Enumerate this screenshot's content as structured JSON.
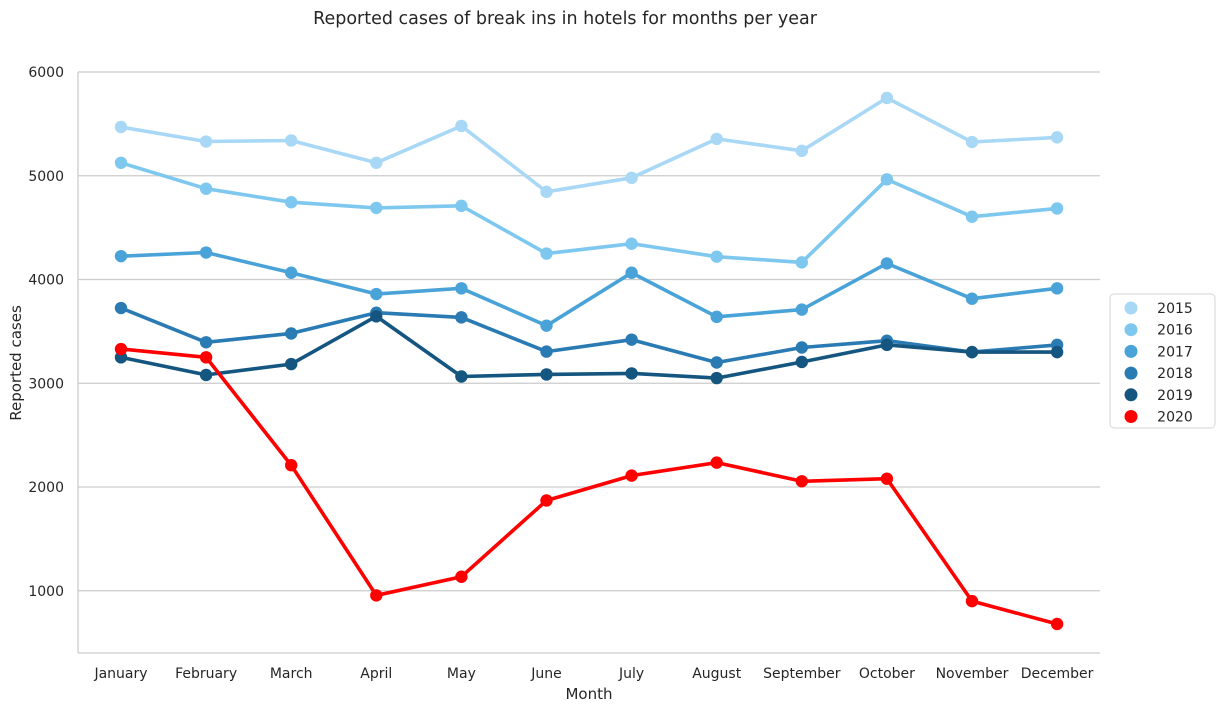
{
  "chart_data": {
    "type": "line",
    "title": "Reported cases of break ins in hotels for months per year",
    "xlabel": "Month",
    "ylabel": "Reported cases",
    "categories": [
      "January",
      "February",
      "March",
      "April",
      "May",
      "June",
      "July",
      "August",
      "September",
      "October",
      "November",
      "December"
    ],
    "ylim": [
      400,
      6000
    ],
    "yticks": [
      1000,
      2000,
      3000,
      4000,
      5000,
      6000
    ],
    "grid": "horizontal",
    "legend_position": "right",
    "series": [
      {
        "name": "2015",
        "color": "#a8d8f5",
        "values": [
          5470,
          5330,
          5340,
          5125,
          5480,
          4845,
          4980,
          5355,
          5240,
          5750,
          5325,
          5370
        ]
      },
      {
        "name": "2016",
        "color": "#7ec8f0",
        "values": [
          5125,
          4875,
          4745,
          4690,
          4710,
          4250,
          4345,
          4220,
          4165,
          4965,
          4605,
          4685
        ]
      },
      {
        "name": "2017",
        "color": "#4aa3d8",
        "values": [
          4225,
          4260,
          4065,
          3860,
          3915,
          3555,
          4065,
          3640,
          3710,
          4155,
          3815,
          3915
        ]
      },
      {
        "name": "2018",
        "color": "#2a7ab3",
        "values": [
          3725,
          3395,
          3480,
          3680,
          3635,
          3305,
          3420,
          3200,
          3345,
          3410,
          3300,
          3370
        ]
      },
      {
        "name": "2019",
        "color": "#14567f",
        "values": [
          3250,
          3080,
          3185,
          3645,
          3065,
          3085,
          3095,
          3050,
          3205,
          3370,
          3300,
          3300
        ]
      },
      {
        "name": "2020",
        "color": "#ff0000",
        "values": [
          3330,
          3250,
          2210,
          955,
          1135,
          1870,
          2110,
          2235,
          2055,
          2080,
          900,
          680
        ]
      }
    ]
  }
}
